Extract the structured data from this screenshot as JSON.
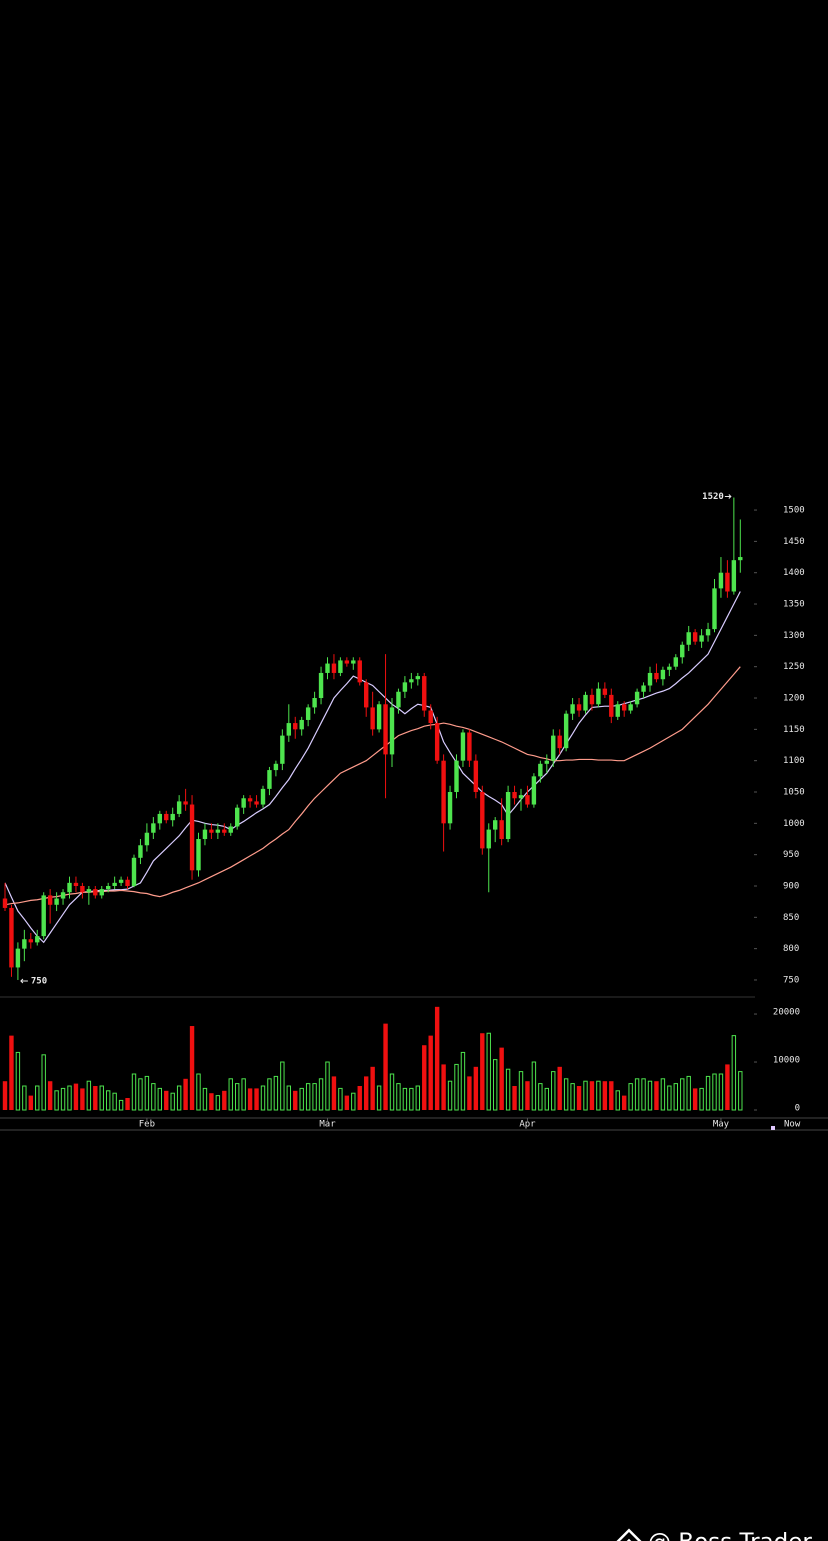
{
  "chart_data": {
    "type": "candlestick",
    "categories": [
      null,
      null,
      null,
      null,
      null,
      null,
      null,
      null,
      null,
      null,
      null,
      null,
      null,
      null,
      null,
      null,
      null,
      null,
      null,
      null,
      null,
      null,
      "Feb",
      null,
      null,
      null,
      null,
      null,
      null,
      null,
      null,
      null,
      null,
      null,
      null,
      null,
      null,
      null,
      null,
      null,
      null,
      null,
      null,
      null,
      null,
      null,
      null,
      null,
      null,
      null,
      "Mar",
      null,
      null,
      null,
      null,
      null,
      null,
      null,
      null,
      null,
      null,
      null,
      null,
      null,
      null,
      null,
      null,
      null,
      null,
      null,
      null,
      null,
      null,
      null,
      null,
      null,
      null,
      null,
      null,
      null,
      null,
      "Apr",
      null,
      null,
      null,
      null,
      null,
      null,
      null,
      null,
      null,
      null,
      null,
      null,
      null,
      null,
      null,
      null,
      null,
      null,
      null,
      null,
      null,
      null,
      null,
      null,
      null,
      null,
      null,
      null,
      null,
      "May",
      null,
      null,
      null
    ],
    "ohlc": [
      [
        880,
        905,
        860,
        865
      ],
      [
        865,
        870,
        755,
        770
      ],
      [
        770,
        810,
        750,
        800
      ],
      [
        800,
        830,
        780,
        815
      ],
      [
        815,
        825,
        800,
        810
      ],
      [
        810,
        830,
        805,
        820
      ],
      [
        820,
        890,
        815,
        885
      ],
      [
        885,
        895,
        840,
        870
      ],
      [
        870,
        890,
        860,
        880
      ],
      [
        880,
        895,
        870,
        890
      ],
      [
        890,
        915,
        880,
        905
      ],
      [
        905,
        915,
        890,
        900
      ],
      [
        900,
        905,
        880,
        890
      ],
      [
        890,
        900,
        870,
        895
      ],
      [
        895,
        900,
        880,
        885
      ],
      [
        885,
        900,
        880,
        895
      ],
      [
        895,
        905,
        890,
        900
      ],
      [
        900,
        915,
        895,
        905
      ],
      [
        905,
        915,
        900,
        910
      ],
      [
        910,
        915,
        895,
        900
      ],
      [
        900,
        950,
        898,
        945
      ],
      [
        945,
        975,
        935,
        965
      ],
      [
        965,
        1000,
        955,
        985
      ],
      [
        985,
        1010,
        975,
        1000
      ],
      [
        1000,
        1020,
        990,
        1015
      ],
      [
        1015,
        1020,
        1000,
        1005
      ],
      [
        1005,
        1025,
        995,
        1015
      ],
      [
        1015,
        1045,
        1010,
        1035
      ],
      [
        1035,
        1055,
        1020,
        1030
      ],
      [
        1030,
        1045,
        910,
        925
      ],
      [
        925,
        985,
        915,
        975
      ],
      [
        975,
        1000,
        965,
        990
      ],
      [
        990,
        1000,
        975,
        985
      ],
      [
        985,
        1000,
        975,
        990
      ],
      [
        990,
        1000,
        980,
        985
      ],
      [
        985,
        1000,
        980,
        995
      ],
      [
        995,
        1030,
        990,
        1025
      ],
      [
        1025,
        1045,
        1015,
        1040
      ],
      [
        1040,
        1045,
        1025,
        1035
      ],
      [
        1035,
        1045,
        1025,
        1030
      ],
      [
        1030,
        1060,
        1025,
        1055
      ],
      [
        1055,
        1090,
        1045,
        1085
      ],
      [
        1085,
        1100,
        1075,
        1095
      ],
      [
        1095,
        1150,
        1085,
        1140
      ],
      [
        1140,
        1190,
        1130,
        1160
      ],
      [
        1160,
        1170,
        1135,
        1150
      ],
      [
        1150,
        1170,
        1140,
        1165
      ],
      [
        1165,
        1190,
        1155,
        1185
      ],
      [
        1185,
        1210,
        1175,
        1200
      ],
      [
        1200,
        1250,
        1190,
        1240
      ],
      [
        1240,
        1265,
        1230,
        1255
      ],
      [
        1255,
        1270,
        1230,
        1240
      ],
      [
        1240,
        1265,
        1235,
        1260
      ],
      [
        1260,
        1265,
        1250,
        1255
      ],
      [
        1255,
        1265,
        1245,
        1260
      ],
      [
        1260,
        1265,
        1220,
        1225
      ],
      [
        1225,
        1230,
        1170,
        1185
      ],
      [
        1185,
        1210,
        1140,
        1150
      ],
      [
        1150,
        1195,
        1145,
        1190
      ],
      [
        1190,
        1270,
        1040,
        1110
      ],
      [
        1110,
        1200,
        1090,
        1185
      ],
      [
        1185,
        1215,
        1175,
        1210
      ],
      [
        1210,
        1235,
        1200,
        1225
      ],
      [
        1225,
        1240,
        1215,
        1230
      ],
      [
        1230,
        1240,
        1220,
        1235
      ],
      [
        1235,
        1240,
        1170,
        1180
      ],
      [
        1180,
        1190,
        1150,
        1160
      ],
      [
        1160,
        1170,
        1095,
        1100
      ],
      [
        1100,
        1110,
        955,
        1000
      ],
      [
        1000,
        1060,
        990,
        1050
      ],
      [
        1050,
        1110,
        1040,
        1100
      ],
      [
        1100,
        1150,
        1090,
        1145
      ],
      [
        1145,
        1150,
        1090,
        1100
      ],
      [
        1100,
        1110,
        1040,
        1050
      ],
      [
        1050,
        1060,
        950,
        960
      ],
      [
        960,
        1000,
        890,
        990
      ],
      [
        990,
        1010,
        970,
        1005
      ],
      [
        1005,
        1040,
        965,
        975
      ],
      [
        975,
        1060,
        970,
        1050
      ],
      [
        1050,
        1060,
        1030,
        1040
      ],
      [
        1040,
        1055,
        1020,
        1045
      ],
      [
        1045,
        1060,
        1025,
        1030
      ],
      [
        1030,
        1080,
        1025,
        1075
      ],
      [
        1075,
        1100,
        1065,
        1095
      ],
      [
        1095,
        1110,
        1080,
        1100
      ],
      [
        1100,
        1150,
        1090,
        1140
      ],
      [
        1140,
        1150,
        1110,
        1120
      ],
      [
        1120,
        1180,
        1115,
        1175
      ],
      [
        1175,
        1200,
        1165,
        1190
      ],
      [
        1190,
        1200,
        1170,
        1180
      ],
      [
        1180,
        1210,
        1175,
        1205
      ],
      [
        1205,
        1215,
        1180,
        1190
      ],
      [
        1190,
        1225,
        1185,
        1215
      ],
      [
        1215,
        1225,
        1200,
        1205
      ],
      [
        1205,
        1215,
        1160,
        1170
      ],
      [
        1170,
        1195,
        1165,
        1190
      ],
      [
        1190,
        1195,
        1170,
        1180
      ],
      [
        1180,
        1195,
        1175,
        1190
      ],
      [
        1190,
        1215,
        1185,
        1210
      ],
      [
        1210,
        1225,
        1200,
        1220
      ],
      [
        1220,
        1250,
        1210,
        1240
      ],
      [
        1240,
        1255,
        1225,
        1230
      ],
      [
        1230,
        1250,
        1220,
        1245
      ],
      [
        1245,
        1255,
        1235,
        1250
      ],
      [
        1250,
        1270,
        1245,
        1265
      ],
      [
        1265,
        1290,
        1255,
        1285
      ],
      [
        1285,
        1315,
        1275,
        1305
      ],
      [
        1305,
        1310,
        1285,
        1290
      ],
      [
        1290,
        1310,
        1280,
        1300
      ],
      [
        1300,
        1320,
        1290,
        1310
      ],
      [
        1310,
        1390,
        1305,
        1375
      ],
      [
        1375,
        1425,
        1360,
        1400
      ],
      [
        1400,
        1420,
        1360,
        1370
      ],
      [
        1370,
        1520,
        1365,
        1420
      ],
      [
        1420,
        1485,
        1400,
        1425
      ]
    ],
    "volume": [
      6000,
      15500,
      12000,
      5000,
      3000,
      5000,
      11500,
      6000,
      4000,
      4500,
      5000,
      5500,
      4500,
      6000,
      5000,
      5000,
      4000,
      3500,
      2000,
      2500,
      7500,
      6500,
      7000,
      5500,
      4500,
      4000,
      3500,
      5000,
      6500,
      17500,
      7500,
      4500,
      3500,
      3000,
      4000,
      6500,
      5500,
      6500,
      4500,
      4500,
      5000,
      6500,
      7000,
      10000,
      5000,
      4000,
      4500,
      5500,
      5500,
      6500,
      10000,
      7000,
      4500,
      3000,
      3500,
      5000,
      7000,
      9000,
      5000,
      18000,
      7500,
      5500,
      4500,
      4500,
      5000,
      13500,
      15500,
      21500,
      9500,
      6000,
      9500,
      12000,
      7000,
      9000,
      16000,
      16000,
      10500,
      13000,
      8500,
      5000,
      8000,
      6000,
      10000,
      5500,
      4500,
      8000,
      9000,
      6500,
      5500,
      5000,
      6000,
      6000,
      6000,
      6000,
      6000,
      4000,
      3000,
      5500,
      6500,
      6500,
      6000,
      6000,
      6500,
      5000,
      5500,
      6500,
      7000,
      4500,
      4500,
      7000,
      7500,
      7500,
      9500,
      15500,
      8000
    ],
    "up_color": "#4ee44e",
    "down_color": "#f01010",
    "ma": [
      {
        "color": "#d8ccff",
        "values": [
          905,
          882,
          860,
          847,
          833,
          820,
          810,
          825,
          840,
          855,
          870,
          880,
          890,
          891,
          892,
          893,
          893,
          894,
          894,
          895,
          900,
          905,
          922,
          940,
          950,
          960,
          970,
          980,
          993,
          1005,
          1003,
          1000,
          998,
          997,
          995,
          990,
          997,
          1003,
          1010,
          1017,
          1023,
          1030,
          1043,
          1057,
          1070,
          1087,
          1103,
          1120,
          1140,
          1160,
          1180,
          1200,
          1212,
          1223,
          1235,
          1230,
          1225,
          1220,
          1210,
          1200,
          1190,
          1183,
          1175,
          1183,
          1190,
          1188,
          1185,
          1158,
          1130,
          1113,
          1097,
          1080,
          1070,
          1060,
          1050,
          1043,
          1037,
          1030,
          1013,
          1025,
          1038,
          1050,
          1060,
          1070,
          1080,
          1095,
          1110,
          1127,
          1143,
          1160,
          1173,
          1185,
          1186,
          1187,
          1187,
          1188,
          1191,
          1194,
          1197,
          1200,
          1204,
          1208,
          1211,
          1215,
          1223,
          1232,
          1240,
          1250,
          1260,
          1270,
          1290,
          1310,
          1330,
          1350,
          1370
        ]
      },
      {
        "color": "#ff9c8c",
        "values": [
          870,
          872,
          873,
          875,
          877,
          878,
          880,
          882,
          883,
          885,
          887,
          888,
          890,
          890,
          891,
          891,
          892,
          892,
          893,
          892,
          891,
          889,
          888,
          885,
          883,
          886,
          890,
          893,
          897,
          901,
          905,
          910,
          915,
          920,
          925,
          930,
          936,
          942,
          948,
          954,
          960,
          968,
          975,
          983,
          990,
          1003,
          1015,
          1028,
          1040,
          1050,
          1060,
          1070,
          1080,
          1085,
          1090,
          1095,
          1100,
          1108,
          1116,
          1124,
          1132,
          1140,
          1144,
          1148,
          1151,
          1155,
          1157,
          1158,
          1160,
          1158,
          1155,
          1153,
          1150,
          1146,
          1142,
          1138,
          1134,
          1130,
          1125,
          1120,
          1115,
          1110,
          1108,
          1105,
          1103,
          1100,
          1100,
          1101,
          1101,
          1102,
          1102,
          1102,
          1101,
          1101,
          1101,
          1100,
          1100,
          1105,
          1110,
          1115,
          1120,
          1126,
          1132,
          1138,
          1144,
          1150,
          1160,
          1170,
          1180,
          1190,
          1202,
          1214,
          1226,
          1238,
          1250
        ]
      }
    ],
    "ylim": [
      734,
      1532
    ],
    "yticks": [
      750,
      800,
      850,
      900,
      950,
      1000,
      1050,
      1100,
      1150,
      1200,
      1250,
      1300,
      1350,
      1400,
      1450,
      1500
    ],
    "vlim": [
      0,
      22300
    ],
    "vticks": [
      0,
      10000,
      20000
    ],
    "max_label": 1520,
    "min_label": 750,
    "now_label": "Now"
  },
  "watermark": "@ Boss Trader_"
}
